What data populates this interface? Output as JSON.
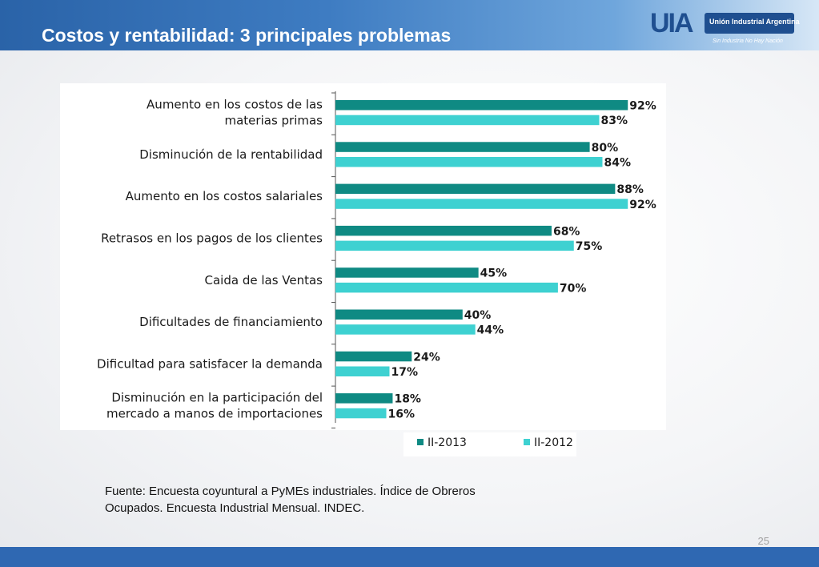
{
  "header": {
    "title": "Costos y rentabilidad: 3 principales problemas"
  },
  "logo": {
    "mark": "UIA",
    "org_name": "Unión Industrial Argentina",
    "tagline": "Sin Industria No Hay Nación"
  },
  "chart_data": {
    "type": "bar",
    "orientation": "horizontal",
    "categories": [
      [
        "Aumento en los costos de las",
        "materias primas"
      ],
      [
        "Disminución de la rentabilidad"
      ],
      [
        "Aumento en los costos salariales"
      ],
      [
        "Retrasos en los pagos de los clientes"
      ],
      [
        "Caida de las Ventas"
      ],
      [
        "Dificultades de financiamiento"
      ],
      [
        "Dificultad para satisfacer la demanda"
      ],
      [
        "Disminución en la participación del",
        "mercado a manos de importaciones"
      ]
    ],
    "series": [
      {
        "name": "II-2013",
        "color": "#0f8a83",
        "values": [
          92,
          80,
          88,
          68,
          45,
          40,
          24,
          18
        ]
      },
      {
        "name": "II-2012",
        "color": "#3ed1d1",
        "values": [
          83,
          84,
          92,
          75,
          70,
          44,
          17,
          16
        ]
      }
    ],
    "value_suffix": "%",
    "xlim": [
      0,
      100
    ],
    "grid": false,
    "legend": "bottom"
  },
  "footer": {
    "source_line1": "Fuente: Encuesta coyuntural a PyMEs industriales. Índice de Obreros",
    "source_line2": "Ocupados. Encuesta Industrial Mensual. INDEC.",
    "page_number": "25"
  }
}
